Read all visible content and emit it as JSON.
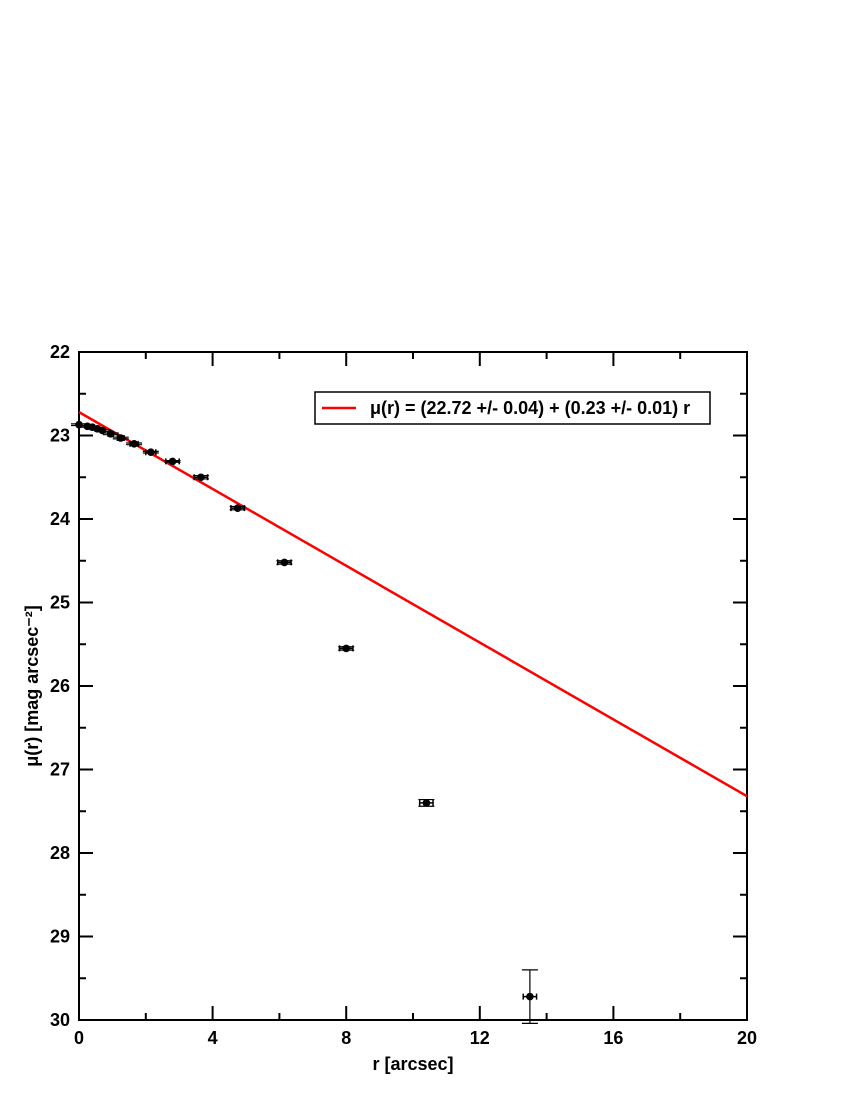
{
  "chart_data": {
    "type": "scatter",
    "xlabel": "r [arcsec]",
    "ylabel": "μ(r) [mag arcsec⁻²]",
    "xlim": [
      0,
      20
    ],
    "xticks": [
      0,
      4,
      8,
      12,
      16,
      20
    ],
    "xminorticks": [
      2,
      6,
      10,
      14,
      18
    ],
    "ylim": [
      22,
      30
    ],
    "y_inverted": true,
    "yticks": [
      22,
      23,
      24,
      25,
      26,
      27,
      28,
      29,
      30
    ],
    "yminorticks": [
      22.5,
      23.5,
      24.5,
      25.5,
      26.5,
      27.5,
      28.5,
      29.5
    ],
    "points": {
      "color": "#000000",
      "x": [
        0,
        0.25,
        0.4,
        0.55,
        0.7,
        0.95,
        1.25,
        1.65,
        2.15,
        2.8,
        3.65,
        4.75,
        6.15,
        8.0,
        10.4,
        13.5
      ],
      "values": [
        22.87,
        22.89,
        22.9,
        22.92,
        22.94,
        22.98,
        23.03,
        23.1,
        23.2,
        23.31,
        23.5,
        23.87,
        24.52,
        25.55,
        27.4,
        29.72
      ],
      "yerr": [
        0.01,
        0.01,
        0.01,
        0.01,
        0.01,
        0.01,
        0.01,
        0.01,
        0.01,
        0.01,
        0.02,
        0.02,
        0.02,
        0.02,
        0.04,
        0.32
      ],
      "xerr": [
        0.05,
        0.05,
        0.05,
        0.05,
        0.05,
        0.08,
        0.1,
        0.12,
        0.15,
        0.2,
        0.2,
        0.2,
        0.2,
        0.2,
        0.2,
        0.2
      ]
    },
    "series": [
      {
        "name": "μ(r) = (22.72 +/- 0.04) + (0.23 +/- 0.01) r",
        "color": "#ff0000",
        "x": [
          0,
          20
        ],
        "values": [
          22.72,
          27.32
        ]
      }
    ]
  }
}
